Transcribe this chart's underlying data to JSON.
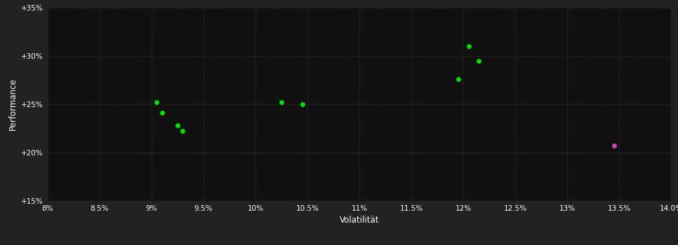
{
  "background_color": "#222222",
  "plot_bg_color": "#111111",
  "grid_color": "#3a3a3a",
  "text_color": "#ffffff",
  "xlabel": "Volatilität",
  "ylabel": "Performance",
  "xlim": [
    0.08,
    0.14
  ],
  "ylim": [
    0.15,
    0.35
  ],
  "xticks": [
    0.08,
    0.085,
    0.09,
    0.095,
    0.1,
    0.105,
    0.11,
    0.115,
    0.12,
    0.125,
    0.13,
    0.135,
    0.14
  ],
  "yticks": [
    0.15,
    0.2,
    0.25,
    0.3,
    0.35
  ],
  "green_points": [
    [
      0.0905,
      0.252
    ],
    [
      0.091,
      0.241
    ],
    [
      0.0925,
      0.228
    ],
    [
      0.093,
      0.222
    ],
    [
      0.1025,
      0.252
    ],
    [
      0.1045,
      0.25
    ],
    [
      0.1195,
      0.276
    ],
    [
      0.1205,
      0.31
    ],
    [
      0.1215,
      0.295
    ]
  ],
  "magenta_points": [
    [
      0.1345,
      0.207
    ]
  ],
  "green_color": "#00dd00",
  "magenta_color": "#cc44bb",
  "marker_size": 5
}
